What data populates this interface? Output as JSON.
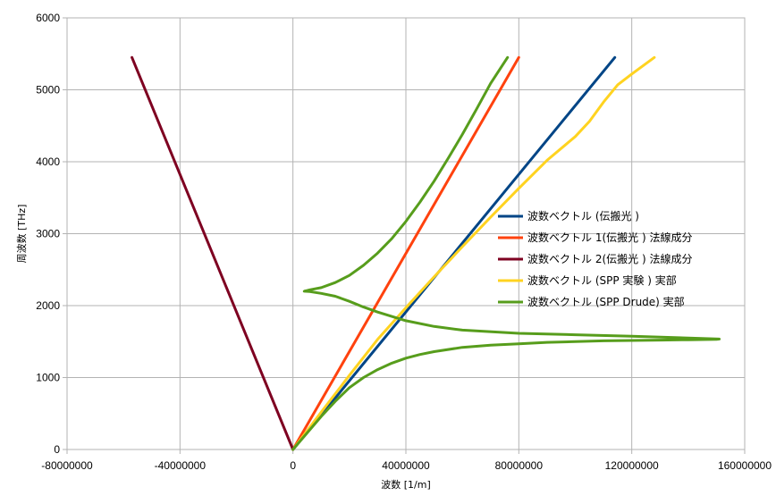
{
  "chart_data": {
    "type": "line",
    "title": "",
    "xlabel": "波数 [1/m]",
    "ylabel": "周波数 [THz]",
    "xlim": [
      -80000000,
      160000000
    ],
    "ylim": [
      0,
      6000
    ],
    "x_ticks": [
      -80000000,
      -40000000,
      0,
      40000000,
      80000000,
      120000000,
      160000000
    ],
    "x_tick_labels": [
      "-80000000",
      "-40000000",
      "0",
      "40000000",
      "80000000",
      "120000000",
      "160000000"
    ],
    "y_ticks": [
      0,
      1000,
      2000,
      3000,
      4000,
      5000,
      6000
    ],
    "y_tick_labels": [
      "0",
      "1000",
      "2000",
      "3000",
      "4000",
      "5000",
      "6000"
    ],
    "grid": true,
    "legend_position": "right",
    "series": [
      {
        "name": "波数ベクトル (伝搬光 )",
        "color": "#004586",
        "x": [
          0,
          114000000
        ],
        "y": [
          0,
          5450
        ]
      },
      {
        "name": "波数ベクトル 1(伝搬光 ) 法線成分",
        "color": "#ff420e",
        "x": [
          0,
          80000000
        ],
        "y": [
          0,
          5450
        ]
      },
      {
        "name": "波数ベクトル 2(伝搬光 ) 法線成分",
        "color": "#7e0021",
        "x": [
          0,
          -57000000
        ],
        "y": [
          0,
          5450
        ]
      },
      {
        "name": "波数ベクトル (SPP  実験 ) 実部",
        "color": "#ffd320",
        "x": [
          0,
          10000000,
          20000000,
          30000000,
          40000000,
          50000000,
          60000000,
          70000000,
          80000000,
          90000000,
          100000000,
          105000000,
          110000000,
          115000000,
          120000000,
          128000000
        ],
        "y": [
          0,
          520,
          1030,
          1530,
          1970,
          2400,
          2820,
          3230,
          3630,
          4020,
          4350,
          4560,
          4830,
          5070,
          5220,
          5450
        ]
      },
      {
        "name": "波数ベクトル (SPP Drude)  実部",
        "color": "#579d1c",
        "x": [
          0,
          5000000,
          10000000,
          15000000,
          20000000,
          25000000,
          30000000,
          35000000,
          40000000,
          45000000,
          50000000,
          60000000,
          70000000,
          80000000,
          90000000,
          100000000,
          110000000,
          120000000,
          130000000,
          140000000,
          150000000,
          151000000,
          140000000,
          120000000,
          100000000,
          80000000,
          60000000,
          50000000,
          40000000,
          30000000,
          25000000,
          20000000,
          15000000,
          10000000,
          6000000,
          4000000,
          6000000,
          10000000,
          15000000,
          20000000,
          25000000,
          30000000,
          35000000,
          40000000,
          45000000,
          50000000,
          55000000,
          60000000,
          65000000,
          70000000,
          76000000
        ],
        "y": [
          0,
          230,
          460,
          670,
          860,
          1000,
          1110,
          1200,
          1270,
          1320,
          1360,
          1420,
          1450,
          1470,
          1490,
          1500,
          1510,
          1515,
          1520,
          1525,
          1530,
          1535,
          1550,
          1575,
          1595,
          1615,
          1660,
          1710,
          1790,
          1910,
          1980,
          2060,
          2130,
          2170,
          2195,
          2200,
          2220,
          2250,
          2320,
          2420,
          2560,
          2730,
          2930,
          3170,
          3440,
          3730,
          4050,
          4380,
          4730,
          5090,
          5450
        ]
      }
    ]
  }
}
